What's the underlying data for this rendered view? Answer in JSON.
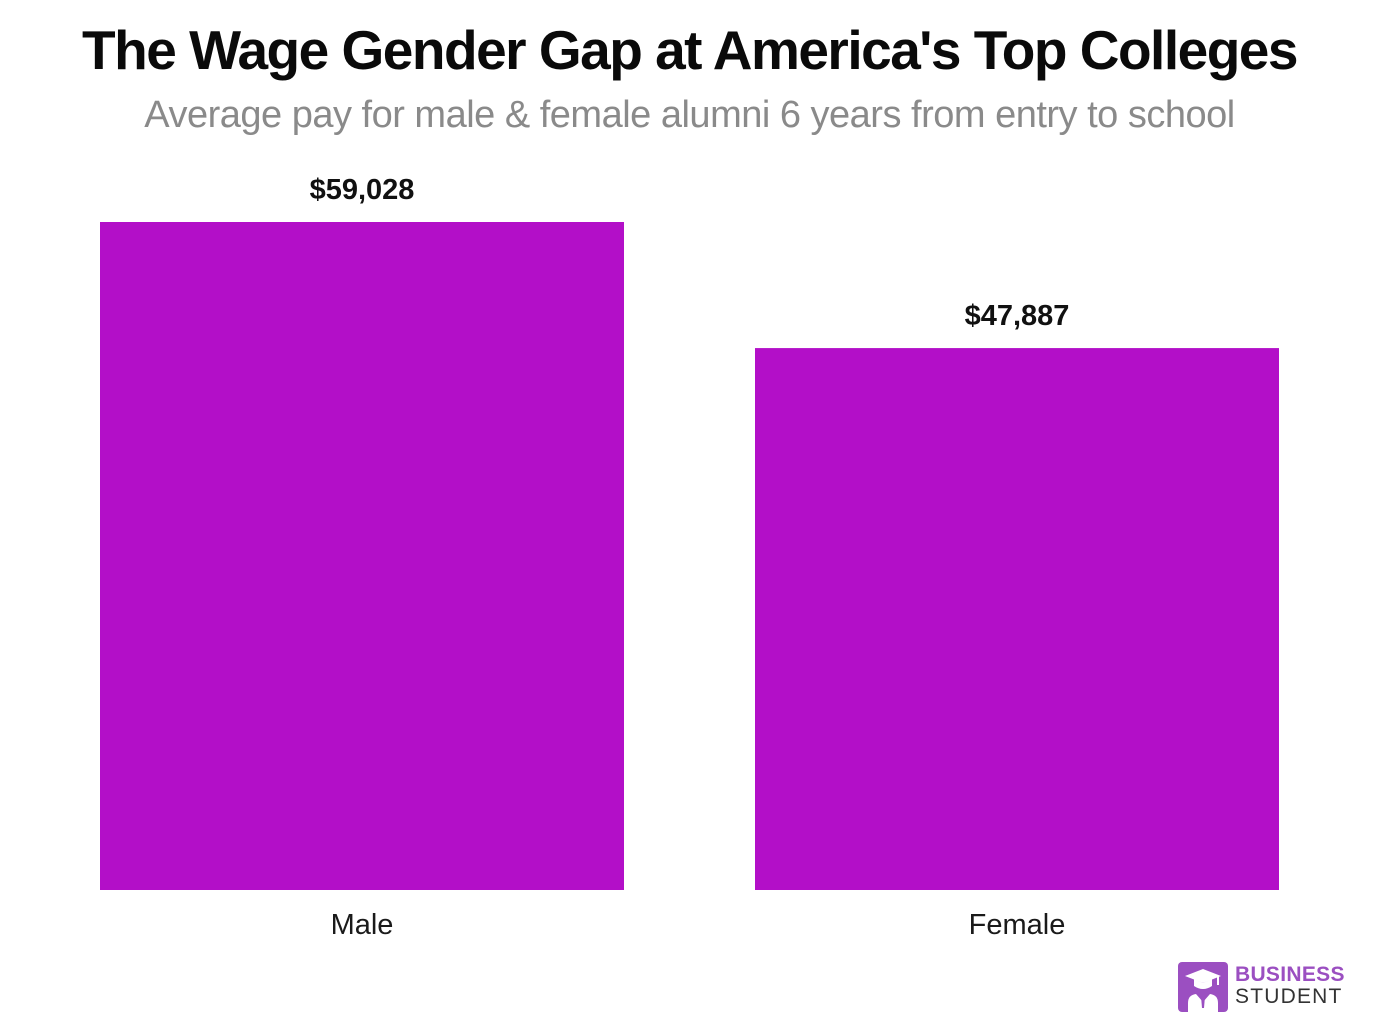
{
  "chart_data": {
    "type": "bar",
    "title": "The Wage Gender Gap at America's Top Colleges",
    "subtitle": "Average pay for male & female alumni 6 years from entry to school",
    "categories": [
      "Male",
      "Female"
    ],
    "values": [
      59028,
      47887
    ],
    "value_labels": [
      "$59,028",
      "$47,887"
    ],
    "xlabel": "",
    "ylabel": "",
    "ylim": [
      0,
      59028
    ],
    "grid": false,
    "bar_color": "#b30fc8"
  },
  "branding": {
    "line1": "BUSINESS",
    "line2": "STUDENT",
    "icon": "graduate-icon",
    "color": "#9b4fc1"
  }
}
